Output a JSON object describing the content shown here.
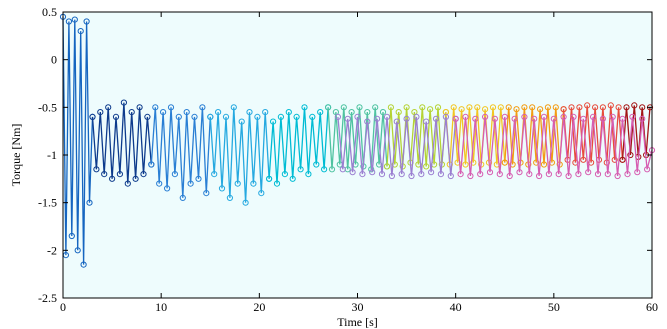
{
  "chart_data": {
    "type": "line",
    "title": "",
    "xlabel": "Time [s]",
    "ylabel": "Torque [Nm]",
    "xlim": [
      0,
      60
    ],
    "ylim": [
      -2.5,
      0.5
    ],
    "xticks": [
      "0",
      "10",
      "20",
      "30",
      "40",
      "50",
      "60"
    ],
    "yticks": [
      "-2.5",
      "-2",
      "-1.5",
      "-1",
      "-0.5",
      "0",
      "0.5"
    ],
    "grid": false,
    "legend": "none",
    "plot_background": "#eefcfd",
    "marker": "open-circle",
    "series": [
      {
        "color": "#1565c0",
        "x": [
          0.0,
          0.3,
          0.6,
          0.9,
          1.2,
          1.5,
          1.8,
          2.1,
          2.4,
          2.7,
          3.0
        ],
        "y": [
          0.45,
          -2.05,
          0.4,
          -1.85,
          0.42,
          -2.0,
          0.3,
          -2.15,
          0.4,
          -1.5,
          -0.6
        ]
      },
      {
        "color": "#0d3b8c",
        "x": [
          3.0,
          3.4,
          3.8,
          4.2,
          4.6,
          5.0,
          5.4,
          5.8,
          6.2,
          6.6,
          7.0,
          7.4,
          7.8,
          8.2,
          8.6,
          9.0
        ],
        "y": [
          -0.6,
          -1.15,
          -0.55,
          -1.2,
          -0.5,
          -1.25,
          -0.6,
          -1.2,
          -0.45,
          -1.3,
          -0.55,
          -1.25,
          -0.5,
          -1.2,
          -0.6,
          -1.1
        ]
      },
      {
        "color": "#2a7fd4",
        "x": [
          9.0,
          9.4,
          9.8,
          10.2,
          10.6,
          11.0,
          11.4,
          11.8,
          12.2,
          12.6,
          13.0,
          13.4,
          13.8,
          14.2,
          14.6,
          15.0
        ],
        "y": [
          -1.1,
          -0.5,
          -1.3,
          -0.55,
          -1.35,
          -0.5,
          -1.2,
          -0.6,
          -1.45,
          -0.55,
          -1.3,
          -0.6,
          -1.25,
          -0.5,
          -1.4,
          -0.6
        ]
      },
      {
        "color": "#26a9e0",
        "x": [
          15.0,
          15.4,
          15.8,
          16.2,
          16.6,
          17.0,
          17.4,
          17.8,
          18.2,
          18.6,
          19.0,
          19.4,
          19.8,
          20.2,
          20.6,
          21.0
        ],
        "y": [
          -0.6,
          -1.2,
          -0.55,
          -1.35,
          -0.6,
          -1.45,
          -0.5,
          -1.3,
          -0.65,
          -1.5,
          -0.55,
          -1.3,
          -0.6,
          -1.4,
          -0.55,
          -1.25
        ]
      },
      {
        "color": "#00bcd4",
        "x": [
          21.0,
          21.4,
          21.8,
          22.2,
          22.6,
          23.0,
          23.4,
          23.8,
          24.2,
          24.6,
          25.0,
          25.4,
          25.8,
          26.2,
          26.6,
          27.0
        ],
        "y": [
          -1.25,
          -0.65,
          -1.3,
          -0.6,
          -1.2,
          -0.55,
          -1.25,
          -0.6,
          -1.15,
          -0.5,
          -1.2,
          -0.6,
          -1.1,
          -0.55,
          -1.15,
          -0.5
        ]
      },
      {
        "color": "#4fc3a1",
        "x": [
          27.0,
          27.4,
          27.8,
          28.2,
          28.6,
          29.0,
          29.4,
          29.8,
          30.2,
          30.6,
          31.0,
          31.4,
          31.8,
          32.2,
          32.6,
          33.0
        ],
        "y": [
          -0.5,
          -1.15,
          -0.55,
          -1.1,
          -0.5,
          -1.15,
          -0.55,
          -1.1,
          -0.5,
          -1.12,
          -0.55,
          -1.15,
          -0.5,
          -1.1,
          -0.55,
          -1.12
        ]
      },
      {
        "color": "#b5d334",
        "x": [
          33.0,
          33.4,
          33.8,
          34.2,
          34.6,
          35.0,
          35.4,
          35.8,
          36.2,
          36.6,
          37.0,
          37.4,
          37.8,
          38.2,
          38.6,
          39.0
        ],
        "y": [
          -1.12,
          -0.5,
          -1.1,
          -0.55,
          -1.12,
          -0.5,
          -1.08,
          -0.55,
          -1.1,
          -0.5,
          -1.12,
          -0.52,
          -1.1,
          -0.5,
          -1.1,
          -0.55
        ]
      },
      {
        "color": "#f3c623",
        "x": [
          39.0,
          39.4,
          39.8,
          40.2,
          40.6,
          41.0,
          41.4,
          41.8,
          42.2,
          42.6,
          43.0,
          43.4,
          43.8,
          44.2,
          44.6,
          45.0
        ],
        "y": [
          -0.55,
          -1.1,
          -0.5,
          -1.08,
          -0.52,
          -1.1,
          -0.5,
          -1.08,
          -0.5,
          -1.1,
          -0.52,
          -1.08,
          -0.5,
          -1.1,
          -0.5,
          -1.08
        ]
      },
      {
        "color": "#f39c12",
        "x": [
          45.0,
          45.4,
          45.8,
          46.2,
          46.6,
          47.0,
          47.4,
          47.8,
          48.2,
          48.6,
          49.0,
          49.4,
          49.8,
          50.2,
          50.6,
          51.0
        ],
        "y": [
          -1.08,
          -0.5,
          -1.1,
          -0.52,
          -1.08,
          -0.5,
          -1.1,
          -0.5,
          -1.08,
          -0.52,
          -1.1,
          -0.5,
          -1.08,
          -0.5,
          -1.1,
          -0.52
        ]
      },
      {
        "color": "#e74c3c",
        "x": [
          51.0,
          51.4,
          51.8,
          52.2,
          52.6,
          53.0,
          53.4,
          53.8,
          54.2,
          54.6,
          55.0,
          55.4,
          55.8,
          56.2,
          56.6,
          57.0
        ],
        "y": [
          -0.52,
          -1.05,
          -0.5,
          -1.08,
          -0.5,
          -1.05,
          -0.48,
          -1.08,
          -0.5,
          -1.05,
          -0.5,
          -1.08,
          -0.48,
          -1.05,
          -0.5,
          -1.05
        ]
      },
      {
        "color": "#a31515",
        "x": [
          57.0,
          57.4,
          57.8,
          58.2,
          58.6,
          59.0,
          59.4,
          59.8
        ],
        "y": [
          -1.05,
          -0.5,
          -1.0,
          -0.48,
          -1.02,
          -0.5,
          -1.0,
          -0.5
        ]
      },
      {
        "color": "#9b7fd1",
        "x": [
          28.0,
          28.5,
          29.0,
          29.5,
          30.0,
          30.5,
          31.0,
          31.5,
          32.0,
          32.5,
          33.0,
          33.5,
          34.0,
          34.5,
          35.0,
          35.5,
          36.0,
          36.5,
          37.0,
          37.5,
          38.0,
          38.5,
          39.0,
          39.5,
          40.0
        ],
        "y": [
          -0.6,
          -1.15,
          -0.62,
          -1.18,
          -0.6,
          -1.2,
          -0.65,
          -1.18,
          -0.62,
          -1.2,
          -0.6,
          -1.22,
          -0.65,
          -1.2,
          -0.62,
          -1.22,
          -0.6,
          -1.2,
          -0.65,
          -1.18,
          -0.62,
          -1.2,
          -0.6,
          -1.22,
          -0.62
        ]
      },
      {
        "color": "#d65db1",
        "x": [
          40.0,
          40.5,
          41.0,
          41.5,
          42.0,
          42.5,
          43.0,
          43.5,
          44.0,
          44.5,
          45.0,
          45.5,
          46.0,
          46.5,
          47.0,
          47.5,
          48.0,
          48.5,
          49.0,
          49.5,
          50.0,
          50.5,
          51.0,
          51.5,
          52.0,
          52.5,
          53.0,
          53.5,
          54.0,
          54.5,
          55.0,
          55.5,
          56.0,
          56.5,
          57.0,
          57.5,
          58.0,
          58.5,
          59.0,
          59.5,
          60.0
        ],
        "y": [
          -0.62,
          -1.2,
          -0.6,
          -1.22,
          -0.62,
          -1.2,
          -0.6,
          -1.18,
          -0.62,
          -1.2,
          -0.6,
          -1.22,
          -0.62,
          -1.18,
          -0.6,
          -1.2,
          -0.62,
          -1.22,
          -0.6,
          -1.2,
          -0.62,
          -1.2,
          -0.6,
          -1.22,
          -0.6,
          -1.2,
          -0.62,
          -1.18,
          -0.6,
          -1.2,
          -0.62,
          -1.2,
          -0.6,
          -1.22,
          -0.62,
          -1.2,
          -0.6,
          -1.18,
          -0.62,
          -1.15,
          -0.95
        ]
      }
    ]
  }
}
